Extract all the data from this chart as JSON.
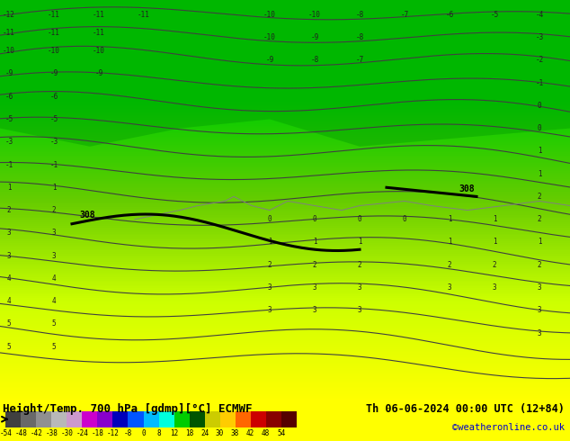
{
  "title_left": "Height/Temp. 700 hPa [gdmp][°C] ECMWF",
  "title_right": "Th 06-06-2024 00:00 UTC (12+84)",
  "credit": "©weatheronline.co.uk",
  "colorbar_values": [
    -54,
    -48,
    -42,
    -38,
    -30,
    -24,
    -18,
    -12,
    -8,
    0,
    8,
    12,
    18,
    24,
    30,
    38,
    42,
    48,
    54
  ],
  "colorbar_colors": [
    "#4a4a4a",
    "#6e6e6e",
    "#8c8c8c",
    "#b0b0b0",
    "#cc99cc",
    "#cc00cc",
    "#9900cc",
    "#0000cc",
    "#0066ff",
    "#00ccff",
    "#00ffcc",
    "#00cc00",
    "#006600",
    "#cccc00",
    "#ffcc00",
    "#ff6600",
    "#cc0000",
    "#990000",
    "#660000"
  ],
  "bg_color": "#ffff00",
  "map_bg_top": "#00cc00",
  "map_bg_bottom": "#ffff00",
  "contour_color": "#000000",
  "contour_label_color": "#000000",
  "isoline_color": "#808080",
  "text_color": "#000000",
  "credit_color": "#0000cc"
}
